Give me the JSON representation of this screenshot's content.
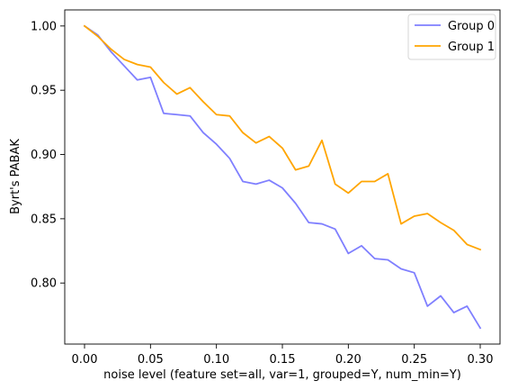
{
  "chart_data": {
    "type": "line",
    "title": "",
    "xlabel": "noise level (feature set=all, var=1, grouped=Y, num_min=Y)",
    "ylabel": "Byrt's PABAK",
    "xlim": [
      -0.015,
      0.315
    ],
    "ylim": [
      0.7525,
      1.0125
    ],
    "x_ticks": [
      0.0,
      0.05,
      0.1,
      0.15,
      0.2,
      0.25,
      0.3
    ],
    "x_tick_labels": [
      "0.00",
      "0.05",
      "0.10",
      "0.15",
      "0.20",
      "0.25",
      "0.30"
    ],
    "y_ticks": [
      0.8,
      0.85,
      0.9,
      0.95,
      1.0
    ],
    "y_tick_labels": [
      "0.80",
      "0.85",
      "0.90",
      "0.95",
      "1.00"
    ],
    "grid": false,
    "legend_position": "top-right",
    "x": [
      0.0,
      0.01,
      0.02,
      0.03,
      0.04,
      0.05,
      0.06,
      0.07,
      0.08,
      0.09,
      0.1,
      0.11,
      0.12,
      0.13,
      0.14,
      0.15,
      0.16,
      0.17,
      0.18,
      0.19,
      0.2,
      0.21,
      0.22,
      0.23,
      0.24,
      0.25,
      0.26,
      0.27,
      0.28,
      0.29,
      0.3
    ],
    "series": [
      {
        "name": "Group 0",
        "color": "#7f7fff",
        "values": [
          1.0,
          0.993,
          0.98,
          0.969,
          0.958,
          0.96,
          0.932,
          0.931,
          0.93,
          0.917,
          0.908,
          0.897,
          0.879,
          0.877,
          0.88,
          0.874,
          0.862,
          0.847,
          0.846,
          0.842,
          0.823,
          0.829,
          0.819,
          0.818,
          0.811,
          0.808,
          0.782,
          0.79,
          0.777,
          0.782,
          0.765
        ]
      },
      {
        "name": "Group 1",
        "color": "#ffa500",
        "values": [
          1.0,
          0.992,
          0.982,
          0.974,
          0.97,
          0.968,
          0.956,
          0.947,
          0.952,
          0.941,
          0.931,
          0.93,
          0.917,
          0.909,
          0.914,
          0.905,
          0.888,
          0.891,
          0.911,
          0.877,
          0.87,
          0.879,
          0.879,
          0.885,
          0.846,
          0.852,
          0.854,
          0.847,
          0.841,
          0.83,
          0.826
        ]
      }
    ]
  }
}
